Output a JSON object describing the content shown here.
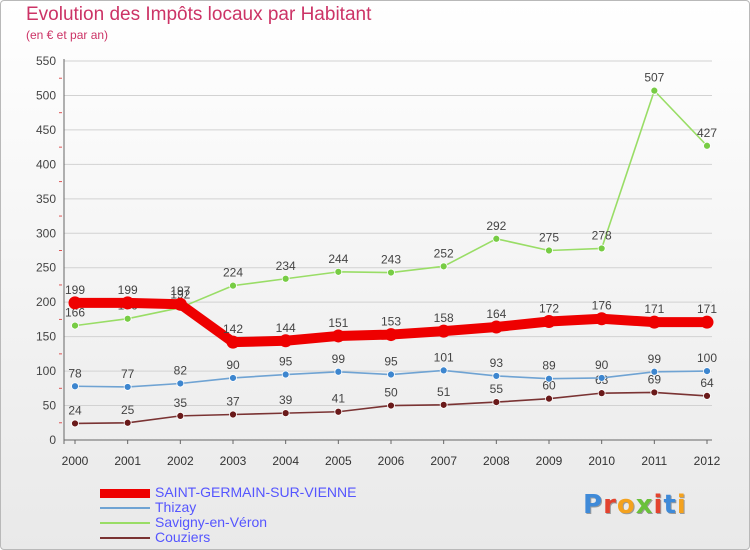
{
  "title": "Evolution des Impôts locaux par Habitant",
  "subtitle": "(en € et par an)",
  "logo_text": "Proxiti",
  "logo_colors": [
    "#3f8ad8",
    "#e3432f",
    "#f4a21e",
    "#6ac13b",
    "#e3432f",
    "#3f8ad8",
    "#f4a21e"
  ],
  "chart_data": {
    "type": "line",
    "categories": [
      "2000",
      "2001",
      "2002",
      "2003",
      "2004",
      "2005",
      "2006",
      "2007",
      "2008",
      "2009",
      "2010",
      "2011",
      "2012"
    ],
    "ylim": [
      0,
      550
    ],
    "yticks": [
      0,
      50,
      100,
      150,
      200,
      250,
      300,
      350,
      400,
      450,
      500,
      550
    ],
    "grid": "horizontal",
    "legend_position": "bottom",
    "series": [
      {
        "name": "SAINT-GERMAIN-SUR-VIENNE",
        "color": "#ee0000",
        "marker": "#ee0000",
        "values": [
          199,
          199,
          197,
          142,
          144,
          151,
          153,
          158,
          164,
          172,
          176,
          171,
          171
        ]
      },
      {
        "name": "Thizay",
        "color": "#6fa3d3",
        "marker": "#3d86cf",
        "values": [
          78,
          77,
          82,
          90,
          95,
          99,
          95,
          101,
          93,
          89,
          90,
          99,
          100
        ]
      },
      {
        "name": "Savigny-en-Véron",
        "color": "#99dd66",
        "marker": "#77cc44",
        "values": [
          166,
          176,
          192,
          224,
          234,
          244,
          243,
          252,
          292,
          275,
          278,
          507,
          427
        ]
      },
      {
        "name": "Couziers",
        "color": "#7a3333",
        "marker": "#6a1a1a",
        "values": [
          24,
          25,
          35,
          37,
          39,
          41,
          50,
          51,
          55,
          60,
          68,
          69,
          64
        ]
      }
    ]
  }
}
